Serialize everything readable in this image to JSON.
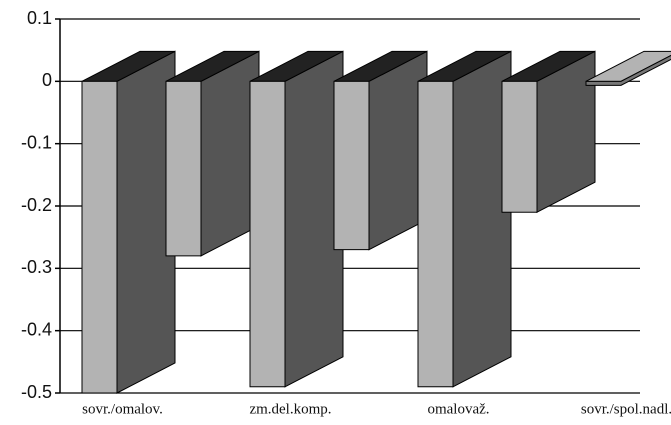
{
  "chart_data": {
    "type": "bar3d",
    "categories": [
      "sovr./omalov.",
      null,
      "zm.del.komp.",
      null,
      "omalovaž.",
      null,
      "sovr./spol.nadl."
    ],
    "values": [
      -0.5,
      -0.28,
      -0.49,
      -0.27,
      -0.49,
      -0.21,
      0
    ],
    "ylim": [
      -0.5,
      0.1
    ],
    "yticks": [
      -0.5,
      -0.4,
      -0.3,
      -0.2,
      -0.1,
      0,
      0.1
    ],
    "grid": true,
    "front_color": "#b3b3b3",
    "side_color": "#555555",
    "top_color": "#222222"
  }
}
